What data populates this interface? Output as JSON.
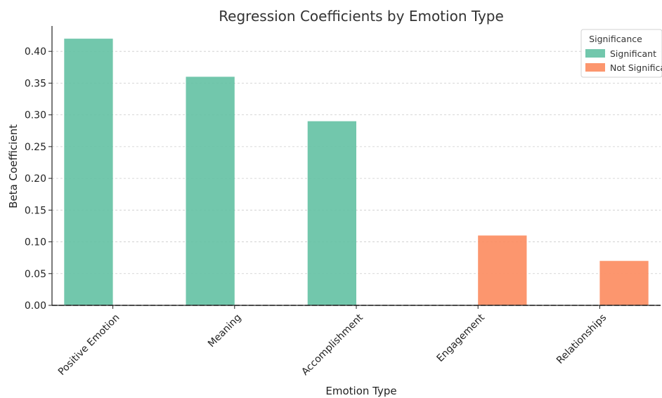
{
  "chart_data": {
    "type": "bar",
    "title": "Regression Coefficients by Emotion Type",
    "xlabel": "Emotion Type",
    "ylabel": "Beta Coefficient",
    "categories": [
      "Positive Emotion",
      "Meaning",
      "Accomplishment",
      "Engagement",
      "Relationships"
    ],
    "series": [
      {
        "name": "Significant",
        "color": "#66c2a5",
        "values": [
          0.42,
          0.36,
          0.29,
          null,
          null
        ]
      },
      {
        "name": "Not Significant",
        "color": "#fc8d62",
        "values": [
          null,
          null,
          null,
          0.11,
          0.07
        ]
      }
    ],
    "ylim": [
      0,
      0.44
    ],
    "yticks": [
      0.0,
      0.05,
      0.1,
      0.15,
      0.2,
      0.25,
      0.3,
      0.35,
      0.4
    ],
    "ytick_labels": [
      "0.00",
      "0.05",
      "0.10",
      "0.15",
      "0.20",
      "0.25",
      "0.30",
      "0.35",
      "0.40"
    ],
    "grid": "horizontal-dashed",
    "reference_line": {
      "y": 0,
      "style": "dashed"
    },
    "legend": {
      "title": "Significance",
      "placement": "top-right",
      "entries": [
        "Significant",
        "Not Significant"
      ]
    }
  }
}
